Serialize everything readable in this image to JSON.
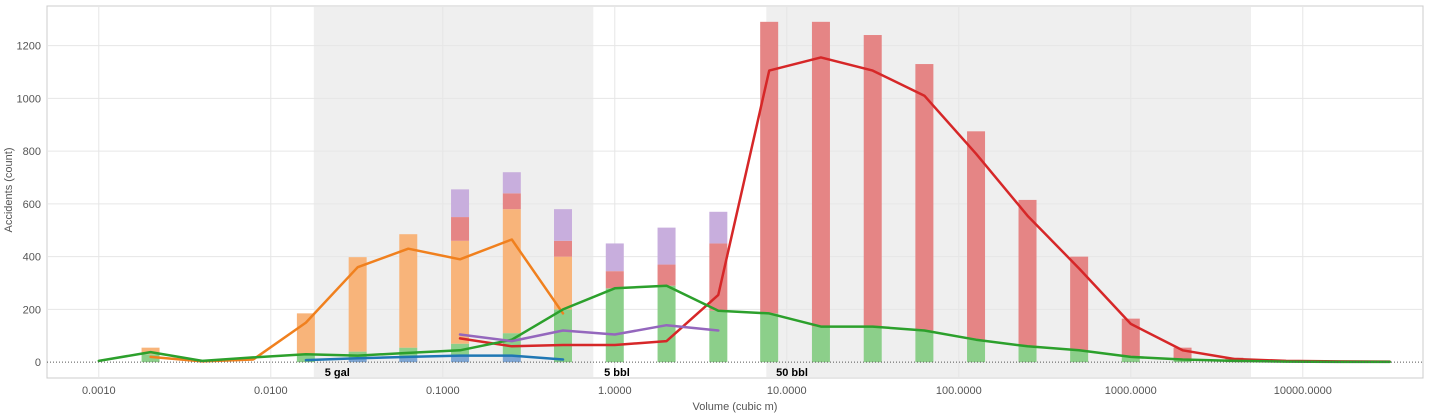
{
  "chart_data": {
    "type": "bar",
    "xlabel": "Volume (cubic m)",
    "ylabel": "Accidents (count)",
    "x_scale": "log",
    "xlim": [
      0.0005,
      50000
    ],
    "ylim": [
      -60,
      1350
    ],
    "y_ticks": [
      "0",
      "200",
      "400",
      "600",
      "800",
      "1000",
      "1200"
    ],
    "x_ticks": [
      {
        "value": 0.001,
        "label": "0.0010"
      },
      {
        "value": 0.01,
        "label": "0.0100"
      },
      {
        "value": 0.1,
        "label": "0.1000"
      },
      {
        "value": 1,
        "label": "1.0000"
      },
      {
        "value": 10,
        "label": "10.0000"
      },
      {
        "value": 100,
        "label": "100.0000"
      },
      {
        "value": 1000,
        "label": "1000.0000"
      },
      {
        "value": 10000,
        "label": "10000.0000"
      }
    ],
    "shaded_bands": [
      [
        0.0178,
        0.75
      ],
      [
        7.6,
        5000
      ]
    ],
    "zone_labels": [
      {
        "x": 0.019,
        "text": "5 gal"
      },
      {
        "x": 0.8,
        "text": "5 bbl"
      },
      {
        "x": 8,
        "text": "50 bbl"
      }
    ],
    "grid": true,
    "colors": {
      "orange": "#f8b47a",
      "red": "#e58585",
      "purple": "#c8aedd",
      "green": "#8ccf8a",
      "blue": "#7fa6d3",
      "line_orange": "#f0801e",
      "line_red": "#d62728",
      "line_green": "#2ca02c",
      "line_purple": "#9467bd",
      "line_blue": "#1f77b4"
    },
    "bars": [
      {
        "x": 0.002,
        "segments": [
          {
            "series": "green",
            "value": 30
          },
          {
            "series": "orange",
            "value": 25
          }
        ]
      },
      {
        "x": 0.016,
        "segments": [
          {
            "series": "green",
            "value": 30
          },
          {
            "series": "orange",
            "value": 155
          }
        ]
      },
      {
        "x": 0.032,
        "segments": [
          {
            "series": "blue",
            "value": 15
          },
          {
            "series": "green",
            "value": 25
          },
          {
            "series": "orange",
            "value": 358
          }
        ]
      },
      {
        "x": 0.063,
        "segments": [
          {
            "series": "blue",
            "value": 20
          },
          {
            "series": "green",
            "value": 35
          },
          {
            "series": "orange",
            "value": 430
          }
        ]
      },
      {
        "x": 0.126,
        "segments": [
          {
            "series": "blue",
            "value": 25
          },
          {
            "series": "green",
            "value": 45
          },
          {
            "series": "orange",
            "value": 390
          },
          {
            "series": "red",
            "value": 90
          },
          {
            "series": "purple",
            "value": 105
          }
        ]
      },
      {
        "x": 0.252,
        "segments": [
          {
            "series": "blue",
            "value": 25
          },
          {
            "series": "green",
            "value": 85
          },
          {
            "series": "orange",
            "value": 470
          },
          {
            "series": "red",
            "value": 60
          },
          {
            "series": "purple",
            "value": 80
          }
        ]
      },
      {
        "x": 0.5,
        "segments": [
          {
            "series": "green",
            "value": 200
          },
          {
            "series": "orange",
            "value": 200
          },
          {
            "series": "red",
            "value": 60
          },
          {
            "series": "purple",
            "value": 120
          }
        ]
      },
      {
        "x": 1.0,
        "segments": [
          {
            "series": "green",
            "value": 280
          },
          {
            "series": "red",
            "value": 65
          },
          {
            "series": "purple",
            "value": 105
          }
        ]
      },
      {
        "x": 2.0,
        "segments": [
          {
            "series": "green",
            "value": 290
          },
          {
            "series": "red",
            "value": 80
          },
          {
            "series": "purple",
            "value": 140
          }
        ]
      },
      {
        "x": 4.0,
        "segments": [
          {
            "series": "green",
            "value": 195
          },
          {
            "series": "red",
            "value": 255
          },
          {
            "series": "purple",
            "value": 120
          }
        ]
      },
      {
        "x": 7.9,
        "segments": [
          {
            "series": "green",
            "value": 185
          },
          {
            "series": "red",
            "value": 1105
          }
        ]
      },
      {
        "x": 15.8,
        "segments": [
          {
            "series": "green",
            "value": 135
          },
          {
            "series": "red",
            "value": 1155
          }
        ]
      },
      {
        "x": 31.6,
        "segments": [
          {
            "series": "green",
            "value": 135
          },
          {
            "series": "red",
            "value": 1105
          }
        ]
      },
      {
        "x": 63.1,
        "segments": [
          {
            "series": "green",
            "value": 120
          },
          {
            "series": "red",
            "value": 1010
          }
        ]
      },
      {
        "x": 126,
        "segments": [
          {
            "series": "green",
            "value": 85
          },
          {
            "series": "red",
            "value": 790
          }
        ]
      },
      {
        "x": 251,
        "segments": [
          {
            "series": "green",
            "value": 60
          },
          {
            "series": "red",
            "value": 555
          }
        ]
      },
      {
        "x": 501,
        "segments": [
          {
            "series": "green",
            "value": 45
          },
          {
            "series": "red",
            "value": 355
          }
        ]
      },
      {
        "x": 1000,
        "segments": [
          {
            "series": "green",
            "value": 20
          },
          {
            "series": "red",
            "value": 145
          }
        ]
      },
      {
        "x": 2000,
        "segments": [
          {
            "series": "green",
            "value": 10
          },
          {
            "series": "red",
            "value": 45
          }
        ]
      },
      {
        "x": 4000,
        "segments": [
          {
            "series": "green",
            "value": 5
          },
          {
            "series": "red",
            "value": 12
          }
        ]
      },
      {
        "x": 8000,
        "segments": [
          {
            "series": "green",
            "value": 2
          },
          {
            "series": "red",
            "value": 5
          }
        ]
      }
    ],
    "series": [
      {
        "color": "line_orange",
        "points": [
          [
            0.002,
            20
          ],
          [
            0.004,
            3
          ],
          [
            0.0079,
            10
          ],
          [
            0.016,
            150
          ],
          [
            0.032,
            360
          ],
          [
            0.063,
            430
          ],
          [
            0.126,
            390
          ],
          [
            0.252,
            465
          ],
          [
            0.5,
            185
          ]
        ]
      },
      {
        "color": "line_red",
        "points": [
          [
            0.126,
            90
          ],
          [
            0.252,
            60
          ],
          [
            0.5,
            65
          ],
          [
            1.0,
            65
          ],
          [
            2.0,
            80
          ],
          [
            4.0,
            255
          ],
          [
            7.9,
            1105
          ],
          [
            15.8,
            1155
          ],
          [
            31.6,
            1105
          ],
          [
            63.1,
            1010
          ],
          [
            126,
            790
          ],
          [
            251,
            555
          ],
          [
            501,
            355
          ],
          [
            1000,
            145
          ],
          [
            2000,
            45
          ],
          [
            4000,
            12
          ],
          [
            8000,
            5
          ],
          [
            16000,
            3
          ],
          [
            32000,
            2
          ]
        ]
      },
      {
        "color": "line_green",
        "points": [
          [
            0.001,
            5
          ],
          [
            0.002,
            38
          ],
          [
            0.004,
            5
          ],
          [
            0.0079,
            18
          ],
          [
            0.016,
            30
          ],
          [
            0.032,
            25
          ],
          [
            0.063,
            35
          ],
          [
            0.126,
            45
          ],
          [
            0.252,
            85
          ],
          [
            0.5,
            200
          ],
          [
            1.0,
            280
          ],
          [
            2.0,
            290
          ],
          [
            4.0,
            195
          ],
          [
            7.9,
            185
          ],
          [
            15.8,
            135
          ],
          [
            31.6,
            135
          ],
          [
            63.1,
            120
          ],
          [
            126,
            85
          ],
          [
            251,
            60
          ],
          [
            501,
            45
          ],
          [
            1000,
            20
          ],
          [
            2000,
            10
          ],
          [
            4000,
            5
          ],
          [
            8000,
            2
          ],
          [
            16000,
            1
          ],
          [
            32000,
            1
          ]
        ]
      },
      {
        "color": "line_purple",
        "points": [
          [
            0.126,
            105
          ],
          [
            0.252,
            80
          ],
          [
            0.5,
            120
          ],
          [
            1.0,
            105
          ],
          [
            2.0,
            140
          ],
          [
            4.0,
            120
          ]
        ]
      },
      {
        "color": "line_blue",
        "points": [
          [
            0.016,
            8
          ],
          [
            0.032,
            15
          ],
          [
            0.063,
            20
          ],
          [
            0.126,
            25
          ],
          [
            0.252,
            25
          ],
          [
            0.5,
            10
          ]
        ]
      }
    ]
  }
}
